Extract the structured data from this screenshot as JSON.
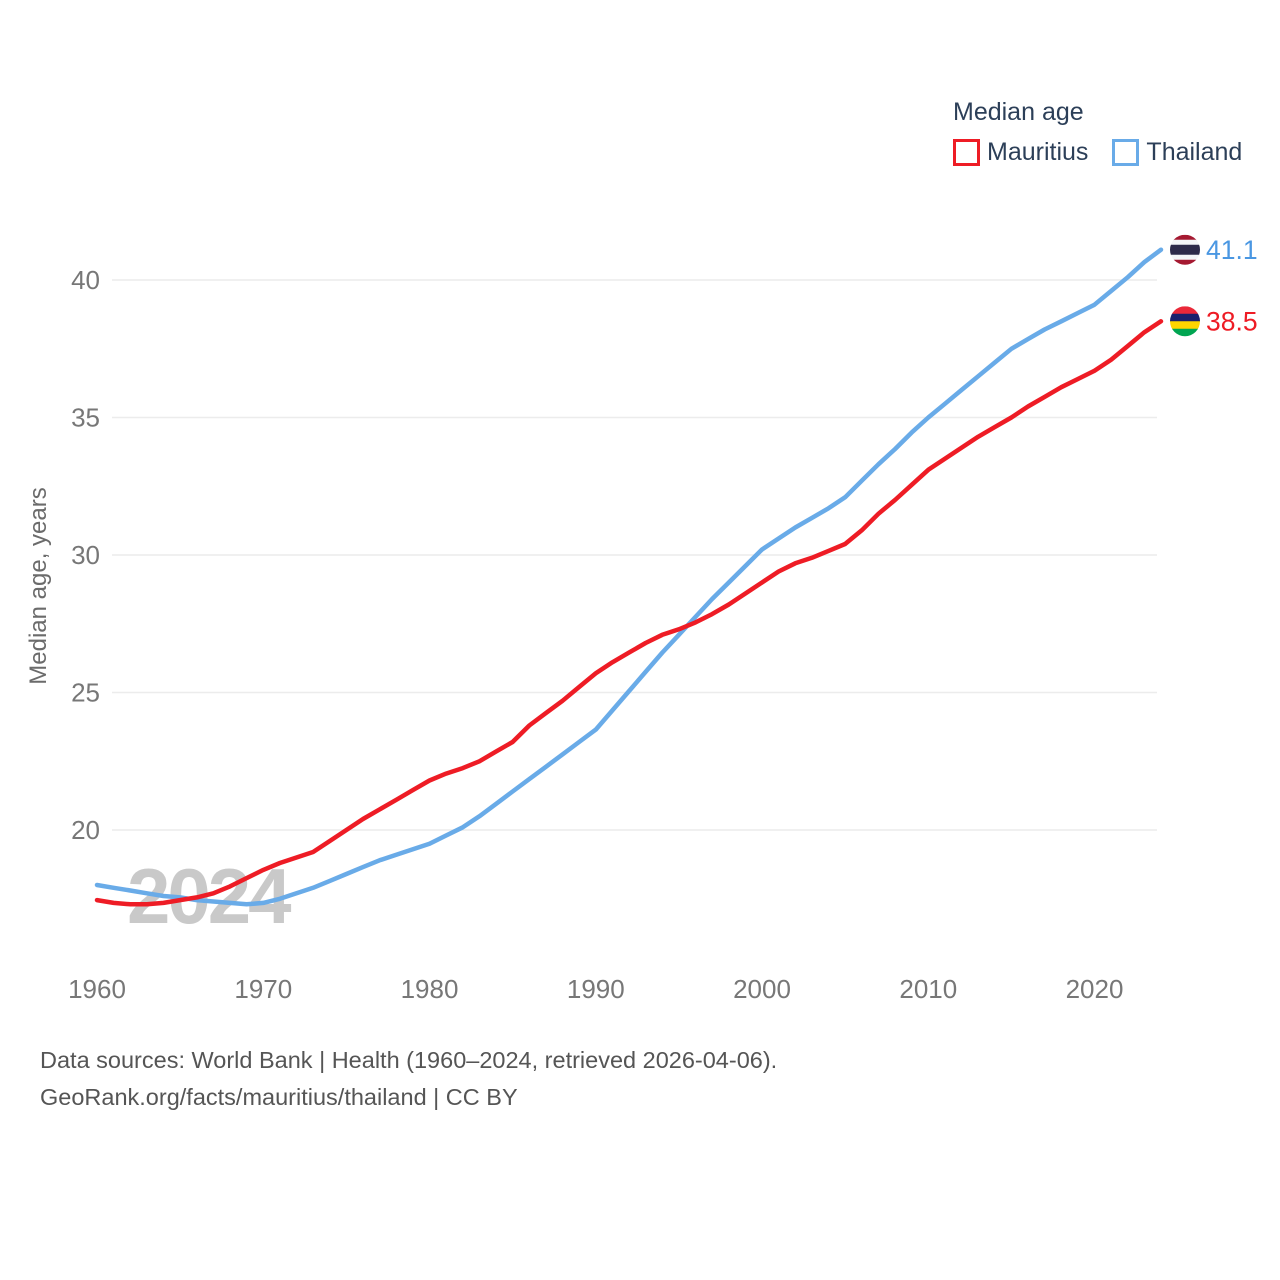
{
  "legend": {
    "title": "Median age",
    "items": [
      {
        "label": "Mauritius",
        "color": "#ee1c25"
      },
      {
        "label": "Thailand",
        "color": "#69abe8"
      }
    ]
  },
  "chart_data": {
    "type": "line",
    "title": "Median age",
    "ylabel": "Median age, years",
    "xlim": [
      1960,
      2024
    ],
    "ylim": [
      16.5,
      42.5
    ],
    "grid": true,
    "legend_position": "top-right",
    "watermark": "2024",
    "yticks": [
      20,
      25,
      30,
      35,
      40
    ],
    "xticks": [
      1960,
      1970,
      1980,
      1990,
      2000,
      2010,
      2020
    ],
    "x": [
      1960,
      1961,
      1962,
      1963,
      1964,
      1965,
      1966,
      1967,
      1968,
      1969,
      1970,
      1971,
      1972,
      1973,
      1974,
      1975,
      1976,
      1977,
      1978,
      1979,
      1980,
      1981,
      1982,
      1983,
      1984,
      1985,
      1986,
      1987,
      1988,
      1989,
      1990,
      1991,
      1992,
      1993,
      1994,
      1995,
      1996,
      1997,
      1998,
      1999,
      2000,
      2001,
      2002,
      2003,
      2004,
      2005,
      2006,
      2007,
      2008,
      2009,
      2010,
      2011,
      2012,
      2013,
      2014,
      2015,
      2016,
      2017,
      2018,
      2019,
      2020,
      2021,
      2022,
      2023,
      2024
    ],
    "series": [
      {
        "name": "Mauritius",
        "color": "#ee1c25",
        "label_color": "#ee1c25",
        "flag": "mauritius",
        "end_value": 38.5,
        "end_label": "38.5",
        "values": [
          17.45,
          17.35,
          17.3,
          17.3,
          17.35,
          17.45,
          17.55,
          17.7,
          17.95,
          18.25,
          18.55,
          18.8,
          19.0,
          19.2,
          19.6,
          20.0,
          20.4,
          20.75,
          21.1,
          21.45,
          21.8,
          22.05,
          22.25,
          22.5,
          22.85,
          23.2,
          23.8,
          24.25,
          24.7,
          25.2,
          25.7,
          26.1,
          26.45,
          26.8,
          27.1,
          27.3,
          27.55,
          27.85,
          28.2,
          28.6,
          29.0,
          29.4,
          29.7,
          29.9,
          30.15,
          30.4,
          30.9,
          31.5,
          32.0,
          32.55,
          33.1,
          33.5,
          33.9,
          34.3,
          34.65,
          35.0,
          35.4,
          35.75,
          36.1,
          36.4,
          36.7,
          37.1,
          37.6,
          38.1,
          38.5
        ]
      },
      {
        "name": "Thailand",
        "color": "#69abe8",
        "label_color": "#4a97e2",
        "flag": "thailand",
        "end_value": 41.1,
        "end_label": "41.1",
        "values": [
          18.0,
          17.9,
          17.8,
          17.7,
          17.6,
          17.55,
          17.45,
          17.4,
          17.35,
          17.3,
          17.35,
          17.5,
          17.7,
          17.9,
          18.15,
          18.4,
          18.65,
          18.9,
          19.1,
          19.3,
          19.5,
          19.8,
          20.1,
          20.5,
          20.95,
          21.4,
          21.85,
          22.3,
          22.75,
          23.2,
          23.65,
          24.35,
          25.05,
          25.75,
          26.45,
          27.1,
          27.75,
          28.4,
          29.0,
          29.6,
          30.2,
          30.6,
          31.0,
          31.35,
          31.7,
          32.1,
          32.7,
          33.3,
          33.85,
          34.45,
          35.0,
          35.5,
          36.0,
          36.5,
          37.0,
          37.5,
          37.85,
          38.2,
          38.5,
          38.8,
          39.1,
          39.6,
          40.1,
          40.65,
          41.1
        ]
      }
    ],
    "flag_colors": {
      "thailand": [
        "#A51931",
        "#F4F5F8",
        "#2D2A4A",
        "#F4F5F8",
        "#A51931"
      ],
      "thailand_heights": [
        1,
        1,
        2,
        1,
        1
      ],
      "mauritius": [
        "#EA2839",
        "#1A206D",
        "#FFD500",
        "#00A551"
      ],
      "mauritius_heights": [
        1,
        1,
        1,
        1
      ]
    }
  },
  "footer": {
    "line1": "Data sources: World Bank | Health (1960–2024, retrieved 2026-04-06).",
    "line2": "GeoRank.org/facts/mauritius/thailand | CC BY"
  }
}
